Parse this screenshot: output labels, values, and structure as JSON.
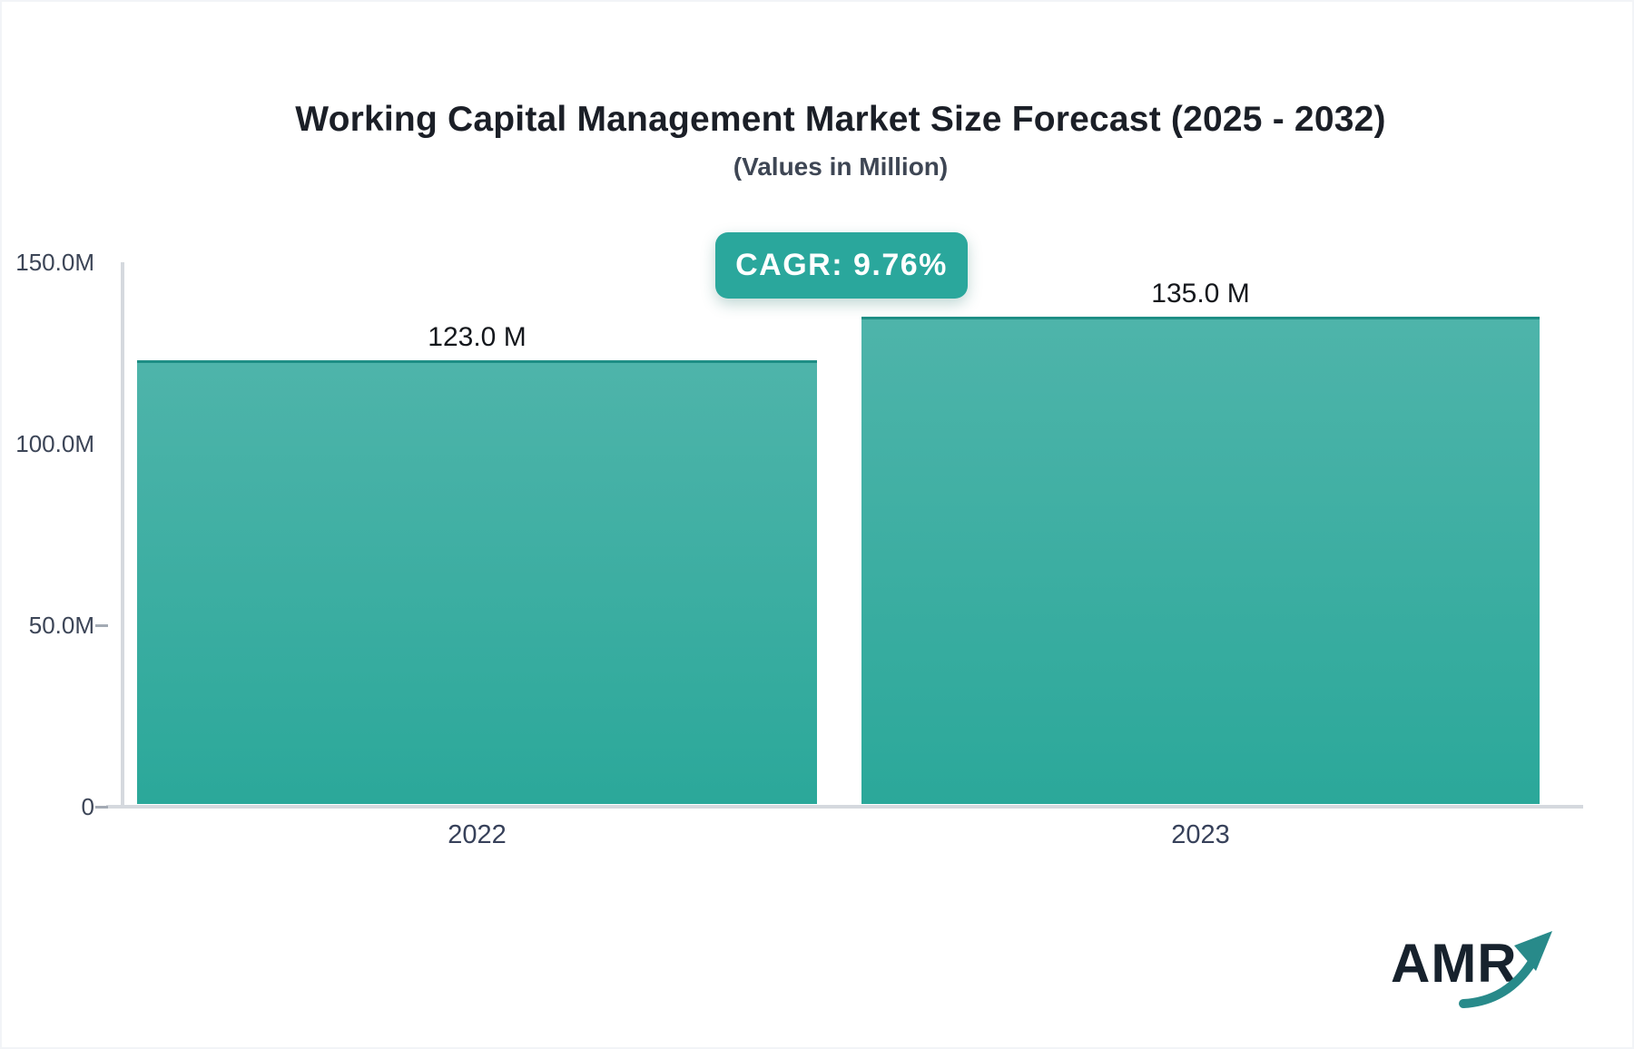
{
  "header": {
    "title": "Working Capital Management Market Size Forecast (2025 - 2032)",
    "subtitle": "(Values in Million)"
  },
  "badge": {
    "label": "CAGR: 9.76%"
  },
  "chart_data": {
    "type": "bar",
    "title": "Working Capital Management Market Size Forecast (2025 - 2032)",
    "subtitle": "(Values in Million)",
    "categories": [
      "2022",
      "2023"
    ],
    "values": [
      123.0,
      135.0
    ],
    "value_labels": [
      "123.0 M",
      "135.0 M"
    ],
    "unit": "Million",
    "xlabel": "",
    "ylabel": "",
    "ylim": [
      0,
      150
    ],
    "yticks": [
      {
        "label": "150.0M",
        "value": 150,
        "dash": false
      },
      {
        "label": "100.0M",
        "value": 100,
        "dash": false
      },
      {
        "label": "50.0M",
        "value": 50,
        "dash": true
      },
      {
        "label": "0",
        "value": 0,
        "dash": true
      }
    ],
    "grid": false,
    "legend": false
  },
  "colors": {
    "bar_gradient_top": "#4eb4aa",
    "bar_gradient_bottom": "#2ba89a",
    "bar_stroke": "#1e8e85",
    "badge_background": "#2aa79c",
    "axis_line": "#d5d9de",
    "logo_arrow": "#288a8a"
  },
  "logo": {
    "text": "AMR"
  }
}
